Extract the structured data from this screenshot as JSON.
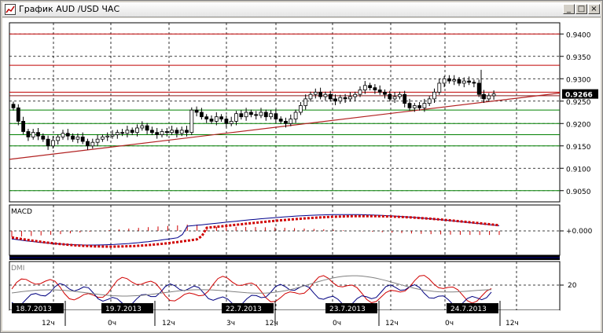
{
  "window": {
    "title": "График AUD /USD  ЧАС",
    "minimize_label": "_",
    "maximize_label": "□",
    "close_label": "×"
  },
  "price_axis": {
    "labels": [
      "0.9400",
      "0.9350",
      "0.9300",
      "0.9250",
      "0.9200",
      "0.9150",
      "0.9100",
      "0.9050"
    ],
    "current_price": "0.9266"
  },
  "macd_panel": {
    "label": "MACD",
    "zero_label": "+0.000"
  },
  "dmi_panel": {
    "label": "DMI",
    "level_label": "20"
  },
  "time_axis": {
    "dates": [
      "18.7.2013",
      "19.7.2013",
      "22.7.2013",
      "23.7.2013",
      "24.7.2013"
    ],
    "hours": [
      "12ч",
      "0ч",
      "12ч",
      "3ч",
      "12ч",
      "0ч",
      "12ч",
      "0ч",
      "12ч"
    ]
  },
  "colors": {
    "candle": "#000000",
    "trend_line": "#b22222",
    "resistance": "#c00000",
    "support": "#008000",
    "macd_signal": "#d00000",
    "macd_line": "#00008b",
    "dmi_plus": "#d00000",
    "dmi_minus": "#000080",
    "adx": "#808080"
  },
  "chart_data": {
    "type": "candlestick",
    "title": "AUD /USD",
    "price_range": [
      0.9025,
      0.9425
    ],
    "candles_close": [
      0.9235,
      0.9205,
      0.9182,
      0.917,
      0.918,
      0.9172,
      0.9165,
      0.915,
      0.9162,
      0.917,
      0.9178,
      0.9172,
      0.9165,
      0.917,
      0.916,
      0.915,
      0.9158,
      0.9165,
      0.917,
      0.9172,
      0.9175,
      0.918,
      0.9178,
      0.9185,
      0.918,
      0.919,
      0.9195,
      0.9185,
      0.918,
      0.9175,
      0.9182,
      0.918,
      0.9185,
      0.9178,
      0.9185,
      0.918,
      0.923,
      0.9225,
      0.9215,
      0.921,
      0.9205,
      0.9215,
      0.921,
      0.92,
      0.9205,
      0.9222,
      0.9215,
      0.9225,
      0.922,
      0.9218,
      0.9225,
      0.9215,
      0.9222,
      0.921,
      0.9205,
      0.92,
      0.921,
      0.9225,
      0.924,
      0.9255,
      0.9265,
      0.927,
      0.926,
      0.9265,
      0.9255,
      0.925,
      0.9258,
      0.9255,
      0.926,
      0.9265,
      0.9275,
      0.9285,
      0.928,
      0.9275,
      0.927,
      0.9265,
      0.9255,
      0.926,
      0.9265,
      0.9245,
      0.9235,
      0.924,
      0.9235,
      0.9245,
      0.9255,
      0.927,
      0.929,
      0.93,
      0.9295,
      0.9298,
      0.929,
      0.9295,
      0.9292,
      0.929,
      0.9265,
      0.9255,
      0.9262,
      0.9266
    ],
    "resistance_levels": [
      0.94,
      0.933,
      0.927
    ],
    "support_levels": [
      0.923,
      0.92,
      0.9175,
      0.915,
      0.905
    ],
    "trend_line": {
      "start": 0.912,
      "end": 0.9268
    }
  }
}
